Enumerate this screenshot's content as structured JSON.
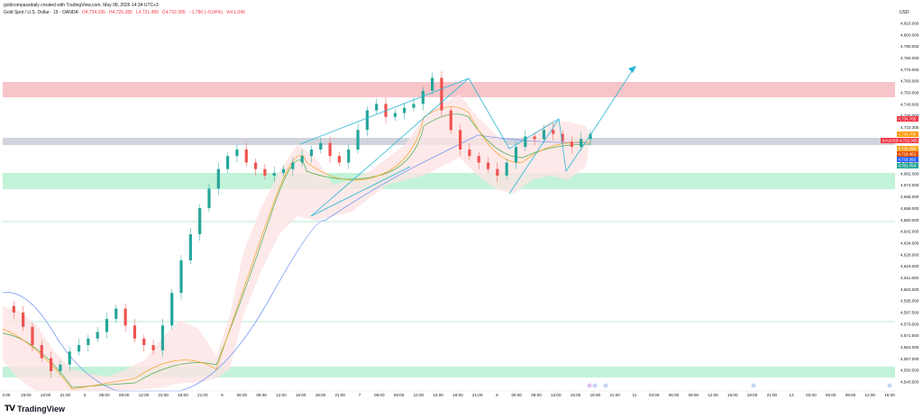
{
  "header": {
    "line1": "goldcompassdaily created with TradingView.com, May 08, 2026 14:34 UTC+3",
    "instrument": "Gold Spot / U.S. Dollar · 15 · OANDA",
    "open": "O4,724.035",
    "high": "H4,725.285",
    "low": "L4,721.490",
    "close": "C4,722.305",
    "change": "−1.780 (−0.04%)",
    "vol": "Vol 1,049"
  },
  "brand": {
    "logo": "TV",
    "name": "TradingView"
  },
  "currency": "USD",
  "colors": {
    "resistance_zone": "#f7c5c9",
    "support_zone": "#c2f2d8",
    "grey_zone": "#d1d4dc",
    "bull": "#26a69a",
    "bear": "#ef5350",
    "pattern": "#29b6d6",
    "ema_fast": "#f6a623",
    "ema_mid": "#4caf50",
    "ema_slow": "#7b9cf6",
    "band_fill": "#fde3e4"
  },
  "chart_data": {
    "type": "candlestick",
    "yaxis_labels": [
      "4,810.000",
      "4,800.000",
      "4,790.000",
      "4,780.000",
      "4,770.000",
      "4,760.000",
      "4,750.000",
      "4,740.000",
      "4,730.000",
      "4,722.305",
      "4,706.000",
      "4,698.000",
      "4,690.000",
      "4,682.000",
      "4,674.000",
      "4,666.000",
      "4,658.000",
      "4,650.000",
      "4,642.000",
      "4,634.000",
      "4,626.000",
      "4,619.000",
      "4,611.500",
      "4,603.000",
      "4,595.000",
      "4,587.500",
      "4,579.500",
      "4,571.500",
      "4,564.000",
      "4,557.000",
      "4,550.500",
      "4,543.500"
    ],
    "price_tags": [
      {
        "label": "XAUUSD",
        "value": "4,722.305",
        "color": "#f23645"
      },
      {
        "label": "",
        "value": "4,734.705",
        "color": "#f23645"
      },
      {
        "label": "",
        "value": "4,720.690",
        "color": "#f6a623"
      },
      {
        "label": "",
        "value": "4,718.462",
        "color": "#e65100"
      },
      {
        "label": "",
        "value": "4,716.392",
        "color": "#2962ff"
      },
      {
        "label": "",
        "value": "4,701.704",
        "color": "#26a69a"
      },
      {
        "label": "",
        "value": "4,734.789",
        "color": "#ff9800"
      }
    ],
    "xaxis_labels": [
      "2:00",
      "15:00",
      "18:00",
      "21:00",
      "5",
      "06:00",
      "09:00",
      "12:00",
      "15:00",
      "18:00",
      "21:00",
      "6",
      "06:00",
      "09:00",
      "12:00",
      "15:00",
      "18:00",
      "21:00",
      "7",
      "06:00",
      "09:00",
      "12:00",
      "15:00",
      "18:00",
      "21:00",
      "8",
      "06:00",
      "09:00",
      "12:00",
      "15:00",
      "18:00",
      "21:00",
      "11",
      "03:00",
      "06:00",
      "09:00",
      "12:00",
      "15:00",
      "18:00",
      "21:00",
      "12",
      "03:00",
      "06:00",
      "09:00",
      "12:00",
      "15:00"
    ],
    "zones": [
      {
        "name": "resistance",
        "from": 4755,
        "to": 4767
      },
      {
        "name": "current",
        "from": 4718,
        "to": 4723
      },
      {
        "name": "support-upper",
        "from": 4695,
        "to": 4705
      },
      {
        "name": "support-lower",
        "from": 4550.5,
        "to": 4556
      }
    ],
    "levels": [
      4670,
      4587
    ],
    "series": [
      {
        "values": [
          4590,
          4585,
          4574,
          4560,
          4550,
          4540,
          4545,
          4555,
          4560,
          4565,
          4570,
          4580,
          4588,
          4575,
          4565,
          4560,
          4556,
          4575,
          4600,
          4625,
          4645,
          4665,
          4680,
          4695,
          4705,
          4710,
          4700,
          4695,
          4690,
          4692,
          4695,
          4700,
          4705,
          4710,
          4715,
          4705,
          4700,
          4710,
          4725,
          4740,
          4745,
          4735,
          4738,
          4742,
          4745,
          4755,
          4765,
          4740,
          4725,
          4710,
          4705,
          4700,
          4695,
          4690,
          4700,
          4712,
          4720,
          4718,
          4725,
          4722,
          4716,
          4712,
          4718,
          4722
        ]
      }
    ]
  }
}
